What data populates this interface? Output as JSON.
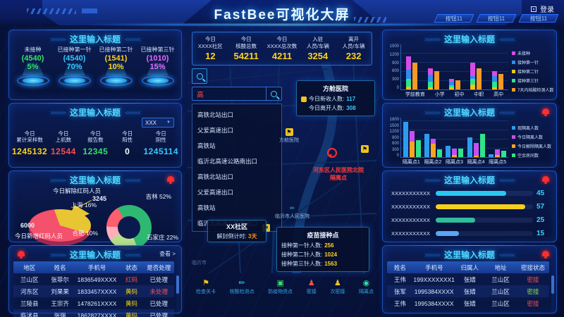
{
  "header": {
    "title": "FastBee可视化大屏",
    "login": "登录",
    "buttons": [
      "按钮11",
      "按钮11",
      "按钮11"
    ]
  },
  "panels": {
    "l1": {
      "title": "这里输入标题",
      "gauges": [
        {
          "label": "未接种",
          "value": "(4540)",
          "percent": "5%",
          "color": "#35e06b"
        },
        {
          "label": "已接种第一针",
          "value": "(4540)",
          "percent": "70%",
          "color": "#35c8ff"
        },
        {
          "label": "已接种第二针",
          "value": "(1541)",
          "percent": "10%",
          "color": "#ffd21a"
        },
        {
          "label": "已接种第三针",
          "value": "(1010)",
          "percent": "15%",
          "color": "#e868ff"
        }
      ]
    },
    "l2": {
      "title": "这里输入标题",
      "dropdown": "XXX",
      "stats": [
        {
          "l1": "今日",
          "l2": "累计采样数",
          "value": "1245132",
          "color": "#ffd21a"
        },
        {
          "l1": "今日",
          "l2": "上机数",
          "value": "12544",
          "color": "#ff4d4d"
        },
        {
          "l1": "今日",
          "l2": "报告数",
          "value": "12345",
          "color": "#35e06b"
        },
        {
          "l1": "今日",
          "l2": "阳性",
          "value": "0",
          "color": "#ffffff"
        },
        {
          "l1": "今日",
          "l2": "阴性",
          "value": "1245114",
          "color": "#35c8ff"
        }
      ]
    },
    "l3": {
      "title": "这里输入标题",
      "pie_label_top": "今日解除红码人员",
      "pie_value_top": "3245",
      "pie_value_left": "6000",
      "pie_label_left": "今日新增红码人员",
      "donut_labels": {
        "sh": "上海 16%",
        "jl": "吉林 52%",
        "hf": "合肥 10%",
        "sjz": "石家庄 22%"
      }
    },
    "l4": {
      "title": "这里输入标题",
      "view_more": "查看 >",
      "headers": [
        "地区",
        "姓名",
        "手机号",
        "状态",
        "是否处理"
      ],
      "rows": [
        {
          "area": "兰山区",
          "name": "张菲尔",
          "phone": "1836549XXXX",
          "status": "红码",
          "status_color": "#ff4d4d",
          "handled": "已处理",
          "handled_color": "#dcecff"
        },
        {
          "area": "河东区",
          "name": "刘果果",
          "phone": "1833457XXXX",
          "status": "黄码",
          "status_color": "#f0d419",
          "handled": "未处理",
          "handled_color": "#ff4d4d"
        },
        {
          "area": "兰陵县",
          "name": "王宗齐",
          "phone": "1478261XXXX",
          "status": "黄码",
          "status_color": "#f0d419",
          "handled": "已处理",
          "handled_color": "#dcecff"
        },
        {
          "area": "临沭县",
          "name": "张强",
          "phone": "1862827XXXX",
          "status": "黄码",
          "status_color": "#f0d419",
          "handled": "已处理",
          "handled_color": "#dcecff"
        }
      ]
    },
    "r1": {
      "title": "这里输入标题"
    },
    "r2": {
      "title": "这里输入标题"
    },
    "r3": {
      "title": "这里输入标题"
    },
    "r4": {
      "title": "这里输入标题",
      "headers": [
        "姓名",
        "手机号",
        "归属人",
        "地址",
        "密接状态"
      ],
      "rows": [
        {
          "name": "王伟",
          "phone": "199XXXXXXX1",
          "owner": "张婧",
          "addr": "兰山区",
          "status": "密接",
          "status_color": "#ff4d4d"
        },
        {
          "name": "张军",
          "phone": "1995384XXXX",
          "owner": "张婧",
          "addr": "兰山区",
          "status": "密接",
          "status_color": "#8ce53a"
        },
        {
          "name": "王伟",
          "phone": "1995384XXXX",
          "owner": "张婧",
          "addr": "兰山区",
          "status": "密接",
          "status_color": "#ff4d4d"
        }
      ]
    }
  },
  "middle": {
    "stats": [
      {
        "l1": "今日",
        "l2": "XXXX社区",
        "value": "12"
      },
      {
        "l1": "今日",
        "l2": "核酸总数",
        "value": "54211"
      },
      {
        "l1": "今日",
        "l2": "XXXX总次数",
        "value": "4211"
      },
      {
        "l1": "入驻",
        "l2": "人员/车辆",
        "value": "3254"
      },
      {
        "l1": "离开",
        "l2": "人员/车辆",
        "value": "232"
      }
    ],
    "search_value": "高",
    "dropdown_items": [
      "高铁北站出口",
      "父爱高速出口",
      "高铁站",
      "临沂北高速公路南出口",
      "高铁北站出口",
      "父爱高速出口",
      "高铁站",
      "临沂北高速公路南出口"
    ],
    "hospital_tip": {
      "title": "方舱医院",
      "rows": [
        {
          "label": "今日新收人数:",
          "value": "117"
        },
        {
          "label": "今日离开人数:",
          "value": "308"
        }
      ]
    },
    "hospital_marker": "方舱医院",
    "risk_line1": "河东区人民医院北院",
    "risk_line2": "隔离点",
    "community": {
      "name": "XX社区",
      "label": "解封倒计时:",
      "value": "3天"
    },
    "vaccine_tip": {
      "title": "疫苗接种点",
      "rows": [
        {
          "label": "接种第一针人数:",
          "value": "256"
        },
        {
          "label": "接种第二针人数:",
          "value": "1024"
        },
        {
          "label": "接种第三针人数:",
          "value": "1563"
        }
      ]
    },
    "city_label": "临沂市",
    "hospital2_label": "临沂市人民医院",
    "legend": [
      {
        "label": "检查关卡",
        "color": "#f0c419",
        "glyph": "⚑"
      },
      {
        "label": "核酸检测点",
        "color": "#29d8ff",
        "glyph": "✏"
      },
      {
        "label": "防疫物资点",
        "color": "#35e06b",
        "glyph": "▣"
      },
      {
        "label": "密接",
        "color": "#ff4d4d",
        "glyph": "♟"
      },
      {
        "label": "次密接",
        "color": "#f0c419",
        "glyph": "♟"
      },
      {
        "label": "隔离点",
        "color": "#35e0a0",
        "glyph": "◉"
      }
    ]
  },
  "chart_data": [
    {
      "id": "chart-edu",
      "type": "bar",
      "title": "这里输入标题",
      "ylim": [
        0,
        1500
      ],
      "yticks": [
        1500,
        1200,
        900,
        600,
        300,
        0
      ],
      "categories": [
        "学前教育",
        "小学",
        "初中",
        "中职",
        "高中"
      ],
      "series": [
        {
          "name": "接种第二针",
          "color": "#f0c419",
          "stack": true,
          "values": [
            100,
            80,
            60,
            170,
            80
          ]
        },
        {
          "name": "接种第三针",
          "color": "#2ee58c",
          "stack": true,
          "values": [
            250,
            170,
            90,
            180,
            170
          ]
        },
        {
          "name": "接种第一针",
          "color": "#2d8cf0",
          "stack": true,
          "values": [
            300,
            250,
            100,
            100,
            200
          ]
        },
        {
          "name": "未接种",
          "color": "#d94ae8",
          "stack": true,
          "values": [
            450,
            200,
            100,
            450,
            150
          ]
        },
        {
          "name": "7天内核酸检测人数",
          "color": "#f59a23",
          "stack": false,
          "values": [
            900,
            620,
            300,
            700,
            520
          ]
        }
      ],
      "legend": [
        {
          "name": "未接种",
          "color": "#d94ae8"
        },
        {
          "name": "接种第一针",
          "color": "#2d8cf0"
        },
        {
          "name": "接种第二针",
          "color": "#f0c419"
        },
        {
          "name": "接种第三针",
          "color": "#2ee58c"
        },
        {
          "name": "7天内核酸检测人数",
          "color": "#f59a23"
        }
      ]
    },
    {
      "id": "chart-iso",
      "type": "bar",
      "title": "这里输入标题",
      "ylim": [
        0,
        1800
      ],
      "yticks": [
        1800,
        1500,
        1200,
        900,
        600,
        300,
        0
      ],
      "categories": [
        "隔离点1",
        "隔离点2",
        "隔离点3",
        "隔离点4",
        "隔离点5"
      ],
      "series": [
        {
          "name": "现隔离人数",
          "color": "#2d9cf0",
          "stack": false,
          "values": [
            1600,
            1050,
            520,
            900,
            120
          ]
        },
        {
          "name": "今日解除隔离人数",
          "color": "#f5a623",
          "stack": true,
          "values": [
            700,
            600,
            100,
            60,
            100
          ]
        },
        {
          "name": "今日隔离人数",
          "color": "#c94ef0",
          "stack": true,
          "values": [
            500,
            250,
            300,
            590,
            250
          ]
        },
        {
          "name": "空余房间数",
          "color": "#2ee58c",
          "stack": false,
          "values": [
            760,
            350,
            380,
            1050,
            280
          ]
        }
      ],
      "legend": [
        {
          "name": "现隔离人数",
          "color": "#2d9cf0"
        },
        {
          "name": "今日隔离人数",
          "color": "#c94ef0"
        },
        {
          "name": "今日解除隔离人数",
          "color": "#f5a623"
        },
        {
          "name": "空余房间数",
          "color": "#2ee58c"
        }
      ]
    },
    {
      "id": "chart-hbar",
      "type": "hbar",
      "title": "这里输入标题",
      "xmax": 62,
      "categories": [
        "XXXXXXXXXXX",
        "XXXXXXXXXXX",
        "XXXXXXXXXXX",
        "XXXXXXXXXXX"
      ],
      "values": [
        45,
        57,
        25,
        15
      ],
      "colors": [
        "#29c8f0",
        "#f5d01a",
        "#2fbf9a",
        "#5aa6f5"
      ]
    },
    {
      "id": "pie-redcode",
      "type": "pie",
      "from": -20,
      "slices": [
        {
          "name": "今日解除红码人员",
          "value": 3245,
          "color": "#e8c532"
        },
        {
          "name": "今日新增红码人员",
          "value": 6000,
          "color": "#f4516c"
        }
      ]
    },
    {
      "id": "donut-city",
      "type": "pie",
      "donut": true,
      "from": -30,
      "slices": [
        {
          "name": "吉林",
          "pct": 52,
          "color": "#2eb872"
        },
        {
          "name": "石家庄",
          "pct": 22,
          "color": "#b8e08a"
        },
        {
          "name": "合肥",
          "pct": 10,
          "color": "#ffaebc"
        },
        {
          "name": "上海",
          "pct": 16,
          "color": "#ff5e6c"
        }
      ]
    }
  ]
}
